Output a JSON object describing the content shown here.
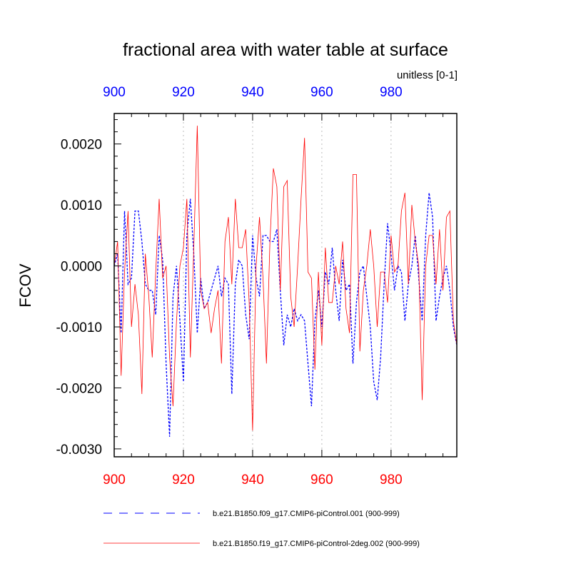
{
  "chart_data": {
    "type": "line",
    "title": "fractional area with water table at surface",
    "units_label": "unitless [0-1]",
    "ylabel": "FCOV",
    "xlabel": "",
    "xlim": [
      900,
      999
    ],
    "ylim": [
      -0.00313,
      0.0025
    ],
    "x_ticks": [
      "900",
      "920",
      "940",
      "960",
      "980"
    ],
    "top_x_ticks": [
      "900",
      "920",
      "940",
      "960",
      "980"
    ],
    "y_ticks": [
      "0.0020",
      "0.0010",
      "0.0000",
      "-0.0010",
      "-0.0020",
      "-0.0030"
    ],
    "grid": "vertical dotted at 920, 940, 960, 980",
    "legend_placement": "bottom",
    "x_start": 900,
    "series": [
      {
        "name": "b.e21.B1850.f09_g17.CMIP6-piControl.001 (900-999)",
        "color": "#0000ff",
        "style": "dashed",
        "values": [
          0.0,
          0.0002,
          -0.0011,
          0.0009,
          -0.0003,
          -0.0002,
          0.0009,
          0.0009,
          0.0004,
          -0.0003,
          -0.0004,
          -0.0004,
          -0.0008,
          0.0005,
          0.0001,
          -0.0016,
          -0.0028,
          -0.0005,
          0.0,
          -0.0009,
          -0.0019,
          0.0005,
          0.0011,
          0.0002,
          -0.0011,
          -0.0002,
          -0.0007,
          -0.0006,
          -0.0004,
          -0.0002,
          0.0,
          -0.0005,
          -0.0002,
          -0.0003,
          -0.0021,
          -0.0003,
          0.0001,
          0.0,
          -0.0008,
          -0.0012,
          0.0005,
          -0.0002,
          -0.0005,
          0.0005,
          0.0005,
          0.0004,
          0.0004,
          0.0006,
          -0.0004,
          -0.0013,
          -0.0008,
          -0.001,
          -0.0007,
          -0.0009,
          -0.0008,
          -0.0009,
          -0.0016,
          -0.0023,
          -0.0009,
          -0.0004,
          -0.001,
          -0.0001,
          -0.0003,
          0.0003,
          -0.0004,
          -0.0009,
          0.0001,
          -0.0004,
          -0.0003,
          -0.0016,
          -0.0006,
          -0.0001,
          0.0,
          -0.0005,
          -0.001,
          -0.0019,
          -0.0022,
          -0.0015,
          -0.0003,
          0.0007,
          0.0002,
          -0.0004,
          0.0,
          -0.0001,
          -0.0009,
          -0.0003,
          0.0,
          0.0005,
          -0.0002,
          -0.0009,
          0.0005,
          0.0012,
          0.0008,
          -0.0009,
          -0.0005,
          -0.0002,
          0.0,
          -0.0004,
          -0.001,
          -0.0013
        ]
      },
      {
        "name": "b.e21.B1850.f19_g17.CMIP6-piControl-2deg.002 (900-999)",
        "color": "#ff0000",
        "style": "solid",
        "values": [
          0.0,
          0.0004,
          -0.0018,
          -0.0001,
          0.0009,
          -0.001,
          -0.0003,
          -0.0008,
          -0.0021,
          0.0002,
          -0.0005,
          -0.0015,
          -0.0001,
          0.0011,
          -0.0002,
          0.0,
          -0.0015,
          -0.0023,
          -0.0009,
          0.0,
          0.0003,
          0.0011,
          -0.0015,
          0.0003,
          0.0023,
          -0.0004,
          -0.0007,
          -0.0006,
          -0.0011,
          -0.0007,
          -0.0004,
          -0.0016,
          0.0004,
          0.0008,
          -0.0003,
          0.0011,
          0.0003,
          0.0003,
          0.0006,
          -0.0006,
          -0.0027,
          0.0,
          0.0008,
          -0.0002,
          -0.0016,
          0.0004,
          0.0016,
          0.0013,
          -0.0004,
          0.0013,
          0.0014,
          -0.0005,
          -0.001,
          0.0,
          0.0011,
          0.0021,
          -0.0001,
          -0.0002,
          -0.0017,
          -0.0001,
          -0.0013,
          0.0003,
          -0.0006,
          -0.0006,
          0.0,
          -0.0003,
          0.0004,
          -0.0007,
          -0.0011,
          0.0015,
          0.0015,
          -0.0014,
          -0.0004,
          0.0,
          0.0006,
          0.0,
          -0.001,
          -0.0001,
          -0.0001,
          -0.0006,
          0.0005,
          -0.0001,
          0.0,
          0.0009,
          0.0012,
          -0.0003,
          0.001,
          0.0004,
          0.0,
          -0.0022,
          0.0,
          0.0005,
          0.0005,
          -0.0003,
          0.0006,
          -0.0004,
          0.0008,
          0.0009,
          -0.0009,
          -0.0013
        ]
      }
    ]
  }
}
